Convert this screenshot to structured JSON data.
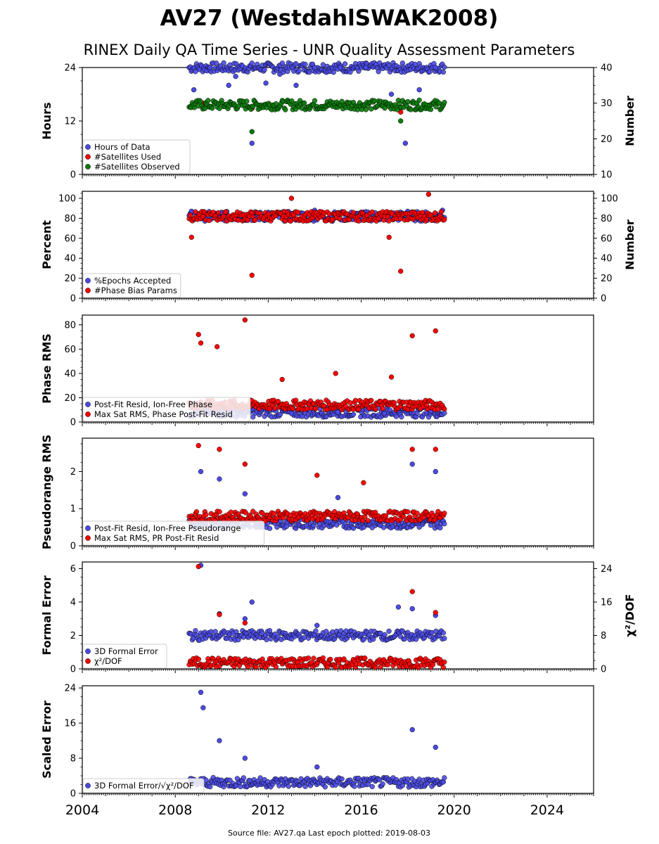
{
  "title": "AV27 (WestdahlSWAK2008)",
  "subtitle": "RINEX Daily QA Time Series - UNR Quality Assessment Parameters",
  "source": "Source file: AV27.qa Last epoch plotted: 2019-08-03",
  "colors": {
    "blue": "#4a4ae6",
    "red": "#ff0000",
    "green": "#0a7a0a"
  },
  "chart_data": [
    {
      "type": "scatter",
      "ylabel": "Hours",
      "ylabel_right": "Number",
      "xlim": [
        2004,
        2026
      ],
      "ylim": [
        0,
        24
      ],
      "ylim_right": [
        10,
        40
      ],
      "yticks": [
        "0",
        "12",
        "24"
      ],
      "yticks_right": [
        "10",
        "20",
        "30",
        "40"
      ],
      "legend": "lower-left",
      "series": [
        {
          "name": "Hours of Data",
          "color": "#4a4ae6",
          "axis": "left",
          "x": [
            2008.8,
            2009.5,
            2010.3,
            2010.6,
            2011.3,
            2011.9,
            2012.5,
            2013.2,
            2014.0,
            2015.1,
            2016.2,
            2017.3,
            2017.9,
            2018.5,
            2019.2
          ],
          "y": [
            19.0,
            24.0,
            20.0,
            22.0,
            7.0,
            20.5,
            22.5,
            20.0,
            24.0,
            24.0,
            24.0,
            18.0,
            7.0,
            19.0,
            24.0
          ],
          "bands": [
            {
              "x0": 2008.6,
              "x1": 2019.6,
              "y": 24.0
            }
          ]
        },
        {
          "name": "#Satellites Used",
          "color": "#ff0000",
          "axis": "right",
          "x": [
            2009.2,
            2011.3,
            2017.7
          ],
          "y": [
            30.0,
            28.5,
            27.5
          ]
        },
        {
          "name": "#Satellites Observed",
          "color": "#0a7a0a",
          "axis": "right",
          "x": [
            2011.3,
            2017.7,
            2018.4
          ],
          "y": [
            22.0,
            25.0,
            30.0
          ],
          "bands": [
            {
              "x0": 2008.6,
              "x1": 2019.6,
              "y": 29.5
            }
          ]
        }
      ]
    },
    {
      "type": "scatter",
      "ylabel": "Percent",
      "ylabel_right": "Number",
      "xlim": [
        2004,
        2026
      ],
      "ylim": [
        0,
        107
      ],
      "ylim_right": [
        0,
        107
      ],
      "yticks": [
        "0",
        "20",
        "40",
        "60",
        "80",
        "100"
      ],
      "yticks_right": [
        "0",
        "20",
        "40",
        "60",
        "80",
        "100"
      ],
      "legend": "lower-left",
      "series": [
        {
          "name": "%Epochs Accepted",
          "color": "#4a4ae6",
          "axis": "left",
          "x": [
            2008.7,
            2010.0,
            2012.0,
            2014.0,
            2016.0,
            2018.0,
            2019.5
          ],
          "y": [
            87,
            86,
            86,
            88,
            86,
            87,
            88
          ],
          "bands": [
            {
              "x0": 2008.6,
              "x1": 2019.6,
              "y": 82
            }
          ]
        },
        {
          "name": "#Phase Bias Params",
          "color": "#ff0000",
          "axis": "right",
          "x": [
            2008.7,
            2011.3,
            2013.0,
            2017.2,
            2017.7,
            2018.9
          ],
          "y": [
            61,
            23,
            100,
            61,
            27,
            104
          ],
          "bands": [
            {
              "x0": 2008.6,
              "x1": 2019.6,
              "y": 82
            }
          ]
        }
      ]
    },
    {
      "type": "scatter",
      "ylabel": "Phase RMS",
      "xlim": [
        2004,
        2026
      ],
      "ylim": [
        0,
        88
      ],
      "yticks": [
        "0",
        "20",
        "40",
        "60",
        "80"
      ],
      "legend": "lower-left",
      "series": [
        {
          "name": "Post-Fit Resid, Ion-Free Phase",
          "color": "#4a4ae6",
          "axis": "left",
          "x": [
            2009.0,
            2010.0,
            2011.0,
            2013.0,
            2015.0,
            2017.0,
            2019.0
          ],
          "y": [
            9,
            8,
            8,
            7,
            8,
            7,
            9
          ],
          "bands": [
            {
              "x0": 2008.6,
              "x1": 2019.6,
              "y": 8
            }
          ]
        },
        {
          "name": "Max Sat RMS, Phase Post-Fit Resid",
          "color": "#ff0000",
          "axis": "left",
          "x": [
            2009.0,
            2009.1,
            2009.8,
            2011.0,
            2012.6,
            2014.9,
            2017.3,
            2018.2,
            2019.2
          ],
          "y": [
            72,
            65,
            62,
            84,
            35,
            40,
            37,
            71,
            75
          ],
          "bands": [
            {
              "x0": 2008.6,
              "x1": 2019.6,
              "y": 14
            }
          ]
        }
      ]
    },
    {
      "type": "scatter",
      "ylabel": "Pseudorange RMS",
      "xlim": [
        2004,
        2026
      ],
      "ylim": [
        0,
        2.9
      ],
      "yticks": [
        "0",
        "1",
        "2"
      ],
      "legend": "lower-left",
      "series": [
        {
          "name": "Post-Fit Resid, Ion-Free Pseudorange",
          "color": "#4a4ae6",
          "axis": "left",
          "x": [
            2009.1,
            2009.9,
            2011.0,
            2013.0,
            2015.0,
            2017.0,
            2018.2,
            2019.2
          ],
          "y": [
            2.0,
            1.8,
            1.4,
            0.7,
            1.3,
            0.8,
            2.2,
            2.0
          ],
          "bands": [
            {
              "x0": 2008.6,
              "x1": 2019.6,
              "y": 0.6
            }
          ]
        },
        {
          "name": "Max Sat RMS, PR Post-Fit Resid",
          "color": "#ff0000",
          "axis": "left",
          "x": [
            2009.0,
            2009.9,
            2011.0,
            2014.1,
            2016.1,
            2018.2,
            2019.2
          ],
          "y": [
            2.7,
            2.6,
            2.2,
            1.9,
            1.7,
            2.6,
            2.6
          ],
          "bands": [
            {
              "x0": 2008.6,
              "x1": 2019.6,
              "y": 0.8
            }
          ]
        }
      ]
    },
    {
      "type": "scatter",
      "ylabel": "Formal Error",
      "ylabel_right": "χ²/DOF",
      "xlim": [
        2004,
        2026
      ],
      "ylim": [
        0,
        6.4
      ],
      "ylim_right": [
        0,
        25.6
      ],
      "yticks": [
        "0",
        "2",
        "4",
        "6"
      ],
      "yticks_right": [
        "0",
        "8",
        "16",
        "24"
      ],
      "legend": "lower-left",
      "series": [
        {
          "name": "3D Formal Error",
          "color": "#4a4ae6",
          "axis": "left",
          "x": [
            2009.1,
            2009.9,
            2011.0,
            2011.3,
            2014.1,
            2017.6,
            2018.2,
            2019.2
          ],
          "y": [
            6.2,
            3.3,
            3.0,
            4.0,
            2.6,
            3.7,
            3.6,
            3.2
          ],
          "bands": [
            {
              "x0": 2008.6,
              "x1": 2019.6,
              "y": 2.0
            }
          ]
        },
        {
          "name": "χ²/DOF",
          "color": "#ff0000",
          "axis": "right",
          "x": [
            2009.0,
            2009.9,
            2011.0,
            2018.2,
            2019.2
          ],
          "y": [
            24.5,
            13.0,
            11.0,
            18.5,
            13.5
          ],
          "bands": [
            {
              "x0": 2008.6,
              "x1": 2019.6,
              "y": 1.5
            }
          ]
        }
      ]
    },
    {
      "type": "scatter",
      "ylabel": "Scaled Error",
      "xlim": [
        2004,
        2026
      ],
      "ylim": [
        0,
        24.5
      ],
      "yticks": [
        "0",
        "8",
        "16",
        "24"
      ],
      "xticks": [
        "2004",
        "2008",
        "2012",
        "2016",
        "2020",
        "2024"
      ],
      "legend": "lower-left",
      "series": [
        {
          "name": "3D Formal Error/√χ²/DOF",
          "color": "#4a4ae6",
          "axis": "left",
          "x": [
            2009.1,
            2009.2,
            2009.9,
            2011.0,
            2014.1,
            2018.2,
            2019.2
          ],
          "y": [
            23.0,
            19.5,
            12.0,
            8.0,
            6.0,
            14.5,
            10.5
          ],
          "bands": [
            {
              "x0": 2008.6,
              "x1": 2019.6,
              "y": 2.5
            }
          ]
        }
      ]
    }
  ]
}
